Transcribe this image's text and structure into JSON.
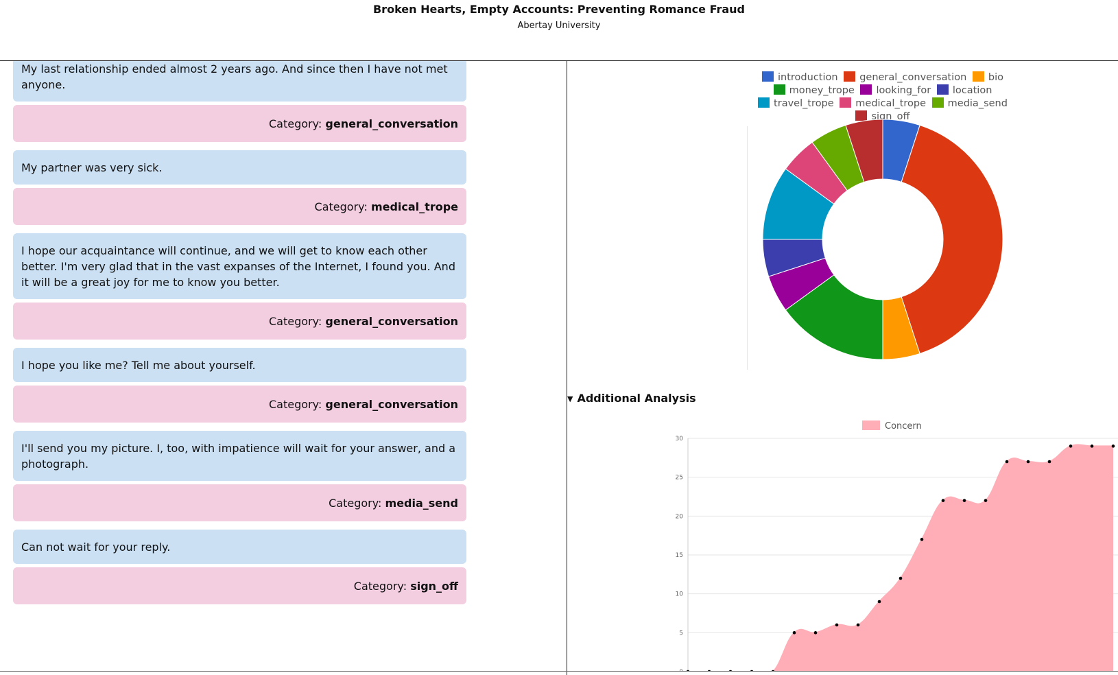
{
  "header": {
    "title": "Broken Hearts, Empty Accounts: Preventing Romance Fraud",
    "subtitle": "Abertay University"
  },
  "category_prefix": "Category: ",
  "messages": [
    {
      "text": "My last relationship ended almost 2 years ago. And since then I have not met anyone.",
      "category": "general_conversation"
    },
    {
      "text": "My partner was very sick.",
      "category": "medical_trope"
    },
    {
      "text": "I hope our acquaintance will continue, and we will get to know each other better. I'm very glad that in the vast expanses of the Internet, I found you. And it will be a great joy for me to know you better.",
      "category": "general_conversation"
    },
    {
      "text": "I hope you like me? Tell me about yourself.",
      "category": "general_conversation"
    },
    {
      "text": "I'll send you my picture. I, too, with impatience will wait for your answer, and a photograph.",
      "category": "media_send"
    },
    {
      "text": "Can not wait for your reply.",
      "category": "sign_off"
    }
  ],
  "additional_analysis_label": "Additional Analysis",
  "chart_data": [
    {
      "type": "pie",
      "categories": [
        "introduction",
        "general_conversation",
        "bio",
        "money_trope",
        "looking_for",
        "location",
        "travel_trope",
        "medical_trope",
        "media_send",
        "sign_off"
      ],
      "values": [
        1,
        8,
        1,
        3,
        1,
        1,
        2,
        1,
        1,
        1
      ],
      "colors": [
        "#3366cc",
        "#dc3912",
        "#ff9900",
        "#109618",
        "#990099",
        "#3b3eac",
        "#0099c6",
        "#dd4477",
        "#66aa00",
        "#b82e2e"
      ],
      "legend": "top"
    },
    {
      "type": "area",
      "series": [
        {
          "name": "Concern",
          "values": [
            0,
            0,
            0,
            0,
            0,
            5,
            5,
            6,
            6,
            9,
            12,
            17,
            22,
            22,
            22,
            27,
            27,
            27,
            29,
            29,
            29
          ]
        }
      ],
      "ylim": [
        0,
        30
      ],
      "yticks": [
        0,
        5,
        10,
        15,
        20,
        25,
        30
      ],
      "color": "#ffadb6",
      "grid": true,
      "legend": "top"
    }
  ]
}
